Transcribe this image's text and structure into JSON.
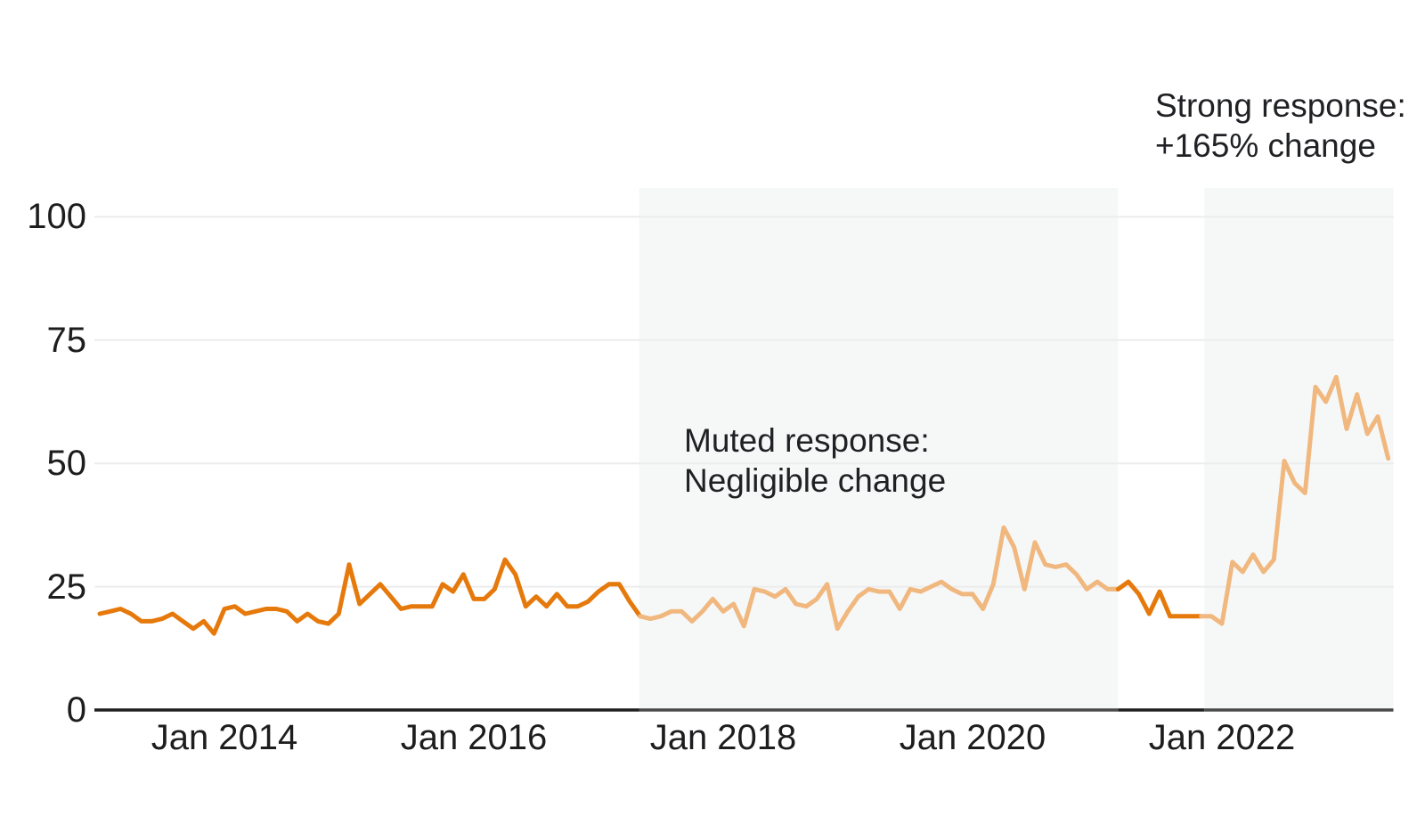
{
  "chart_data": {
    "type": "line",
    "title": "",
    "xlabel": "",
    "ylabel": "",
    "x_start": "2013-01",
    "x_end": "2023-05",
    "x_interval_months": 1,
    "x_tick_labels": [
      "Jan 2014",
      "Jan 2016",
      "Jan 2018",
      "Jan 2020",
      "Jan 2022"
    ],
    "x_tick_month_indices": [
      12,
      36,
      60,
      84,
      108
    ],
    "y_tick_labels": [
      "0",
      "25",
      "50",
      "75",
      "100"
    ],
    "y_ticks": [
      0,
      25,
      50,
      75,
      100
    ],
    "ylim": [
      0,
      106
    ],
    "grid": "horizontal",
    "legend": "none",
    "values": [
      19.5,
      20,
      20.5,
      19.5,
      18,
      18,
      18.5,
      19.5,
      18,
      16.5,
      18,
      15.5,
      20.5,
      21,
      19.5,
      20,
      20.5,
      20.5,
      20,
      18,
      19.5,
      18,
      17.5,
      19.5,
      29.5,
      21.5,
      23.5,
      25.5,
      23,
      20.5,
      21,
      21,
      21,
      25.5,
      24,
      27.5,
      22.5,
      22.5,
      24.5,
      30.5,
      27.5,
      21,
      23,
      21,
      23.5,
      21,
      21,
      22,
      24,
      25.5,
      25.5,
      22,
      19,
      18.5,
      19,
      20,
      20,
      18,
      20,
      22.5,
      20,
      21.5,
      17,
      24.5,
      24,
      23,
      24.5,
      21.5,
      21,
      22.5,
      25.5,
      16.5,
      20,
      23,
      24.5,
      24,
      24,
      20.5,
      24.5,
      24,
      25,
      26,
      24.5,
      23.5,
      23.5,
      20.5,
      25.5,
      37,
      33,
      24.5,
      34,
      29.5,
      29,
      29.5,
      27.5,
      24.5,
      26,
      24.5,
      24.5,
      26,
      23.5,
      19.5,
      24,
      19,
      19,
      19,
      19,
      19,
      17.5,
      30,
      28,
      31.5,
      28,
      30.5,
      50.5,
      46,
      44,
      65.5,
      62.5,
      67.5,
      57,
      64,
      56,
      59.5,
      51
    ],
    "line_segments": [
      {
        "style": "strong",
        "from_index": 0,
        "to_index": 52
      },
      {
        "style": "muted",
        "from_index": 52,
        "to_index": 98
      },
      {
        "style": "strong",
        "from_index": 98,
        "to_index": 106
      },
      {
        "style": "muted",
        "from_index": 106,
        "to_index": 124
      }
    ],
    "highlight_bands": [
      {
        "name": "muted-response-band",
        "from_month_index": 51.9,
        "to_month_index": 98.0,
        "approx_period": "May 2017 - Mar 2021"
      },
      {
        "name": "strong-response-band",
        "from_month_index": 106.3,
        "to_month_index": 124.5,
        "approx_period": "Nov 2021 - May 2023"
      }
    ],
    "annotations": {
      "muted": {
        "line1": "Muted response:",
        "line2": "Negligible change"
      },
      "strong": {
        "line1": "Strong response:",
        "line2": "+165% change"
      }
    },
    "colors": {
      "line_strong": "#e6790b",
      "line_muted": "#f0b87f",
      "band": "#f6f8f8",
      "grid": "#ececec",
      "axis": "#1f1f1f",
      "axis_under_band": "#4a4a4a",
      "text": "#1d1d1f"
    }
  }
}
